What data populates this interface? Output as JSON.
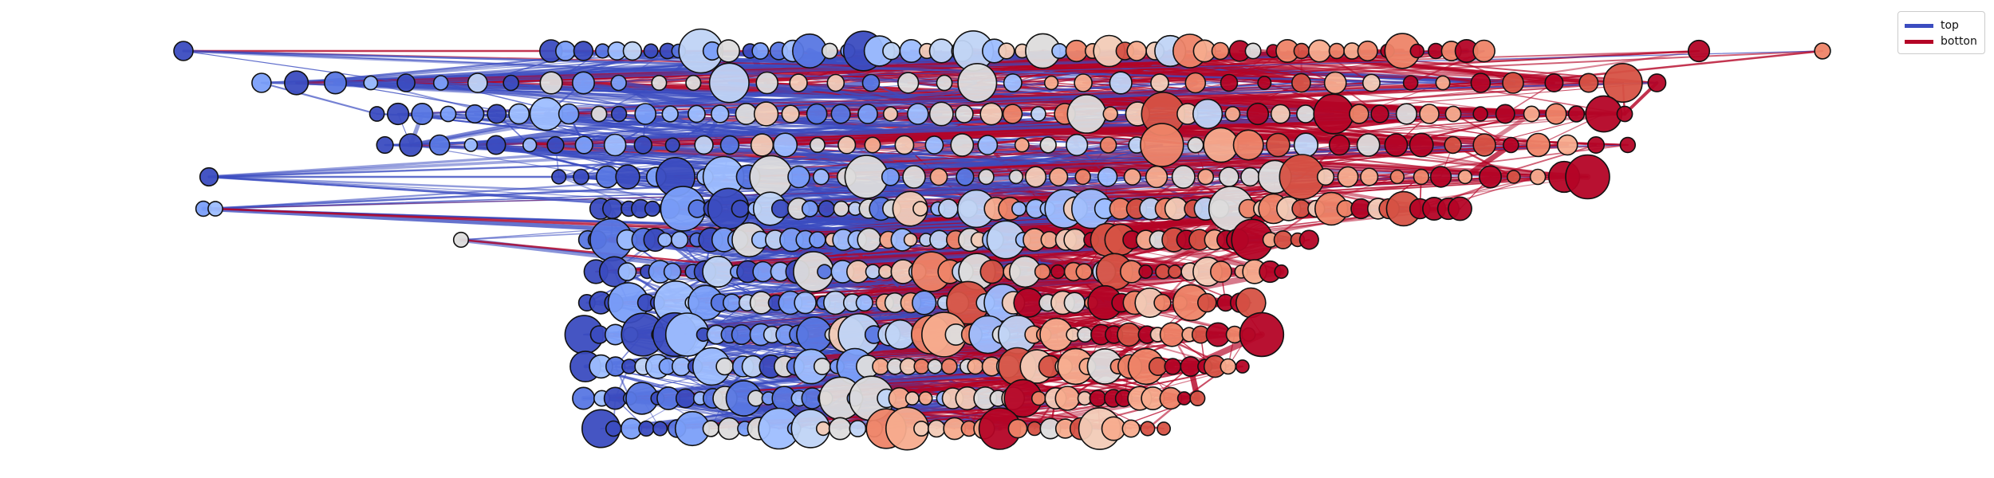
{
  "colors": {
    "top": "#3b4cc0",
    "bottom": "#b40426",
    "node_stroke": "#111111",
    "palette": [
      "#3b4cc0",
      "#5977e3",
      "#7b9ff9",
      "#9ebeff",
      "#c0d4f5",
      "#dddcdc",
      "#f2cbb7",
      "#f7ac8e",
      "#ee8468",
      "#d65244",
      "#b40426"
    ]
  },
  "legend": {
    "placement": "top-right",
    "items": [
      {
        "label": "top",
        "color": "#3b4cc0"
      },
      {
        "label": "botton",
        "color": "#b40426"
      }
    ]
  }
}
